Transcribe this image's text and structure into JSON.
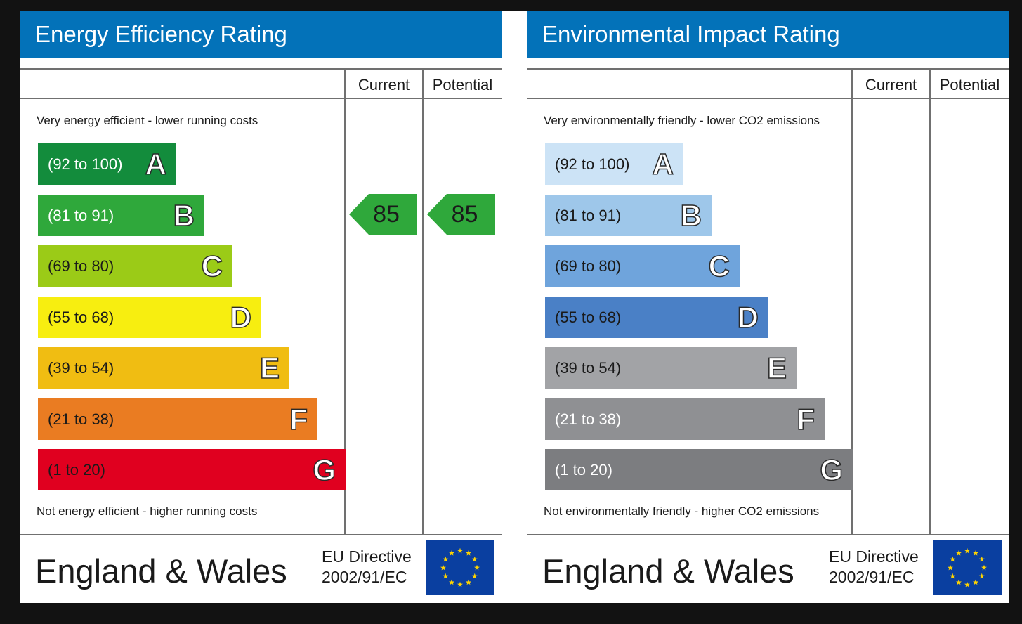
{
  "chart_data": [
    {
      "type": "bar",
      "id": "energy-efficiency",
      "title": "Energy Efficiency Rating",
      "column_headers": {
        "current": "Current",
        "potential": "Potential"
      },
      "top_note": "Very energy efficient - lower running costs",
      "bottom_note": "Not energy efficient - higher running costs",
      "bands": [
        {
          "range": "(92 to 100)",
          "letter": "A",
          "color": "#138c3c",
          "text_color": "#ffffff"
        },
        {
          "range": "(81 to 91)",
          "letter": "B",
          "color": "#2fa83b",
          "text_color": "#ffffff"
        },
        {
          "range": "(69 to 80)",
          "letter": "C",
          "color": "#9bcb17",
          "text_color": "#1a1a1a"
        },
        {
          "range": "(55 to 68)",
          "letter": "D",
          "color": "#f7ee10",
          "text_color": "#1a1a1a"
        },
        {
          "range": "(39 to 54)",
          "letter": "E",
          "color": "#f0bd12",
          "text_color": "#1a1a1a"
        },
        {
          "range": "(21 to 38)",
          "letter": "F",
          "color": "#ea7c22",
          "text_color": "#1a1a1a"
        },
        {
          "range": "(1 to 20)",
          "letter": "G",
          "color": "#e0001f",
          "text_color": "#1a1a1a"
        }
      ],
      "current": {
        "value": 85,
        "band": "B",
        "color": "#2fa83b"
      },
      "potential": {
        "value": 85,
        "band": "B",
        "color": "#2fa83b"
      },
      "footer_country": "England & Wales",
      "footer_directive": [
        "EU Directive",
        "2002/91/EC"
      ]
    },
    {
      "type": "bar",
      "id": "environmental-impact",
      "title": "Environmental Impact Rating",
      "column_headers": {
        "current": "Current",
        "potential": "Potential"
      },
      "top_note": "Very environmentally friendly - lower CO2 emissions",
      "bottom_note": "Not environmentally friendly - higher CO2 emissions",
      "bands": [
        {
          "range": "(92 to 100)",
          "letter": "A",
          "color": "#cce3f6",
          "text_color": "#1a1a1a"
        },
        {
          "range": "(81 to 91)",
          "letter": "B",
          "color": "#9ec7ea",
          "text_color": "#1a1a1a"
        },
        {
          "range": "(69 to 80)",
          "letter": "C",
          "color": "#6fa4dc",
          "text_color": "#1a1a1a"
        },
        {
          "range": "(55 to 68)",
          "letter": "D",
          "color": "#4a80c6",
          "text_color": "#1a1a1a"
        },
        {
          "range": "(39 to 54)",
          "letter": "E",
          "color": "#a2a3a6",
          "text_color": "#1a1a1a"
        },
        {
          "range": "(21 to 38)",
          "letter": "F",
          "color": "#8f9093",
          "text_color": "#ffffff"
        },
        {
          "range": "(1 to 20)",
          "letter": "G",
          "color": "#7c7d80",
          "text_color": "#ffffff"
        }
      ],
      "footer_country": "England & Wales",
      "footer_directive": [
        "EU Directive",
        "2002/91/EC"
      ]
    }
  ],
  "colors": {
    "header_blue": "#0372b9",
    "eu_flag_blue": "#0a3fa0",
    "eu_star_yellow": "#ffd400",
    "background": "#121212"
  }
}
